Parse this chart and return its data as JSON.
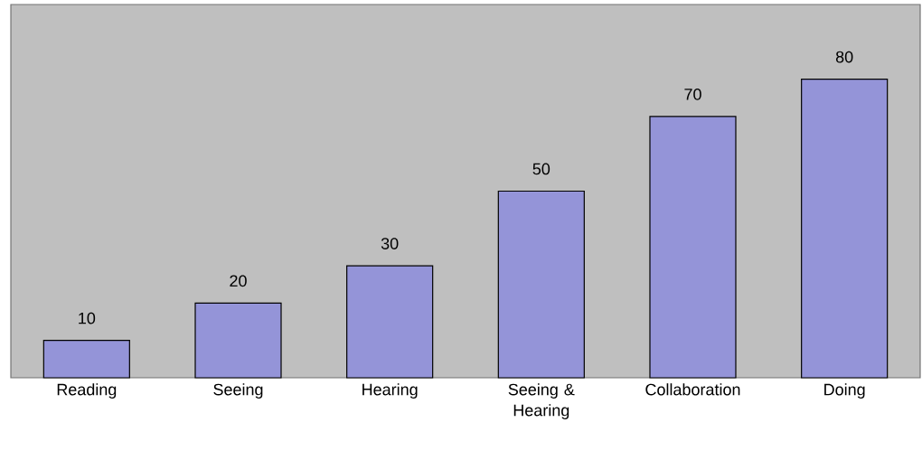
{
  "chart_data": {
    "type": "bar",
    "categories": [
      "Reading",
      "Seeing",
      "Hearing",
      "Seeing & Hearing",
      "Collaboration",
      "Doing"
    ],
    "values": [
      10,
      20,
      30,
      50,
      70,
      80
    ],
    "color": "#9494d8",
    "ylim": [
      0,
      100
    ],
    "data_labels": true
  }
}
